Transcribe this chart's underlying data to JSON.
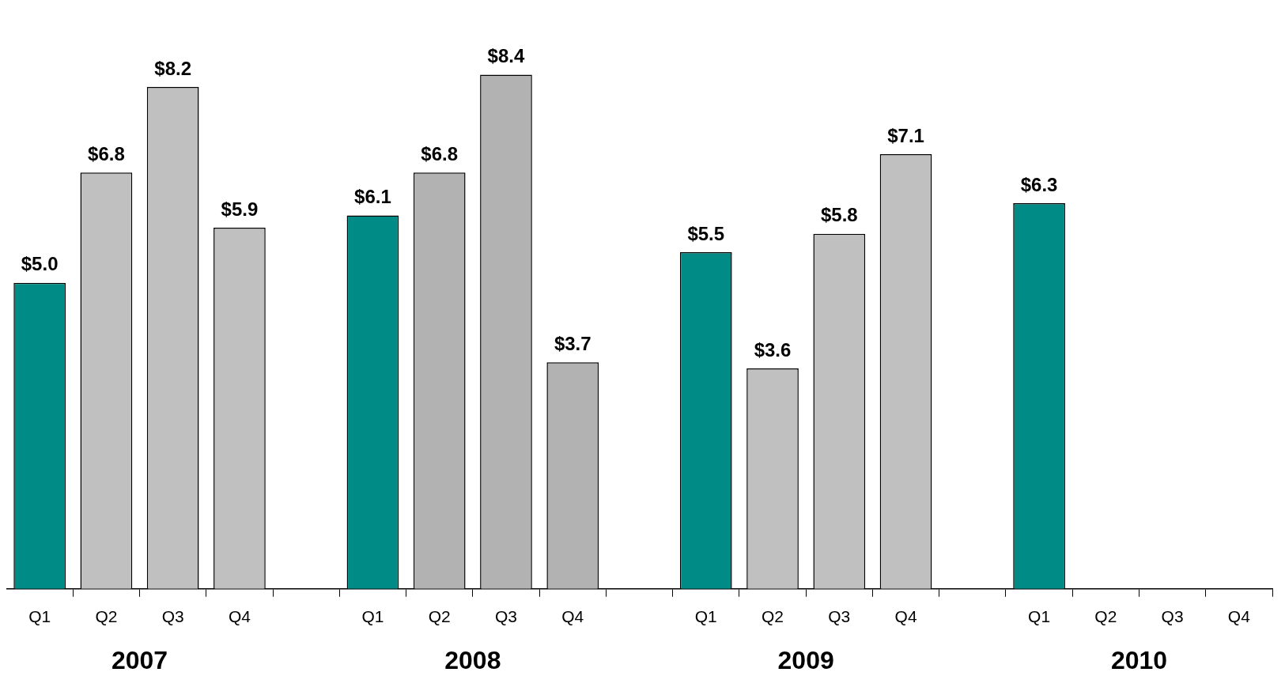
{
  "chart_data": {
    "type": "bar",
    "categories": [
      "Q1",
      "Q2",
      "Q3",
      "Q4",
      null,
      "Q1",
      "Q2",
      "Q3",
      "Q4",
      null,
      "Q1",
      "Q2",
      "Q3",
      "Q4",
      null,
      "Q1",
      "Q2",
      "Q3",
      "Q4"
    ],
    "values": [
      5.0,
      6.8,
      8.2,
      5.9,
      null,
      6.1,
      6.8,
      8.4,
      3.7,
      null,
      5.5,
      3.6,
      5.8,
      7.1,
      null,
      6.3,
      null,
      null,
      null
    ],
    "colors": [
      "#008b86",
      "#c0c0c0",
      "#c0c0c0",
      "#c0c0c0",
      "#c0c0c0",
      "#008b86",
      "#b2b2b2",
      "#b2b2b2",
      "#b2b2b2",
      "#c0c0c0",
      "#008b86",
      "#c0c0c0",
      "#c0c0c0",
      "#c0c0c0",
      "#c0c0c0",
      "#008b86",
      "#c0c0c0",
      "#c0c0c0",
      "#c0c0c0"
    ],
    "value_labels": [
      "$5.0",
      "$6.8",
      "$8.2",
      "$5.9",
      null,
      "$6.1",
      "$6.8",
      "$8.4",
      "$3.7",
      null,
      "$5.5",
      "$3.6",
      "$5.8",
      "$7.1",
      null,
      "$6.3",
      null,
      null,
      null
    ],
    "annotations": [
      "2007",
      "2008",
      "2009",
      "2010"
    ],
    "grid": false,
    "legend": false
  }
}
